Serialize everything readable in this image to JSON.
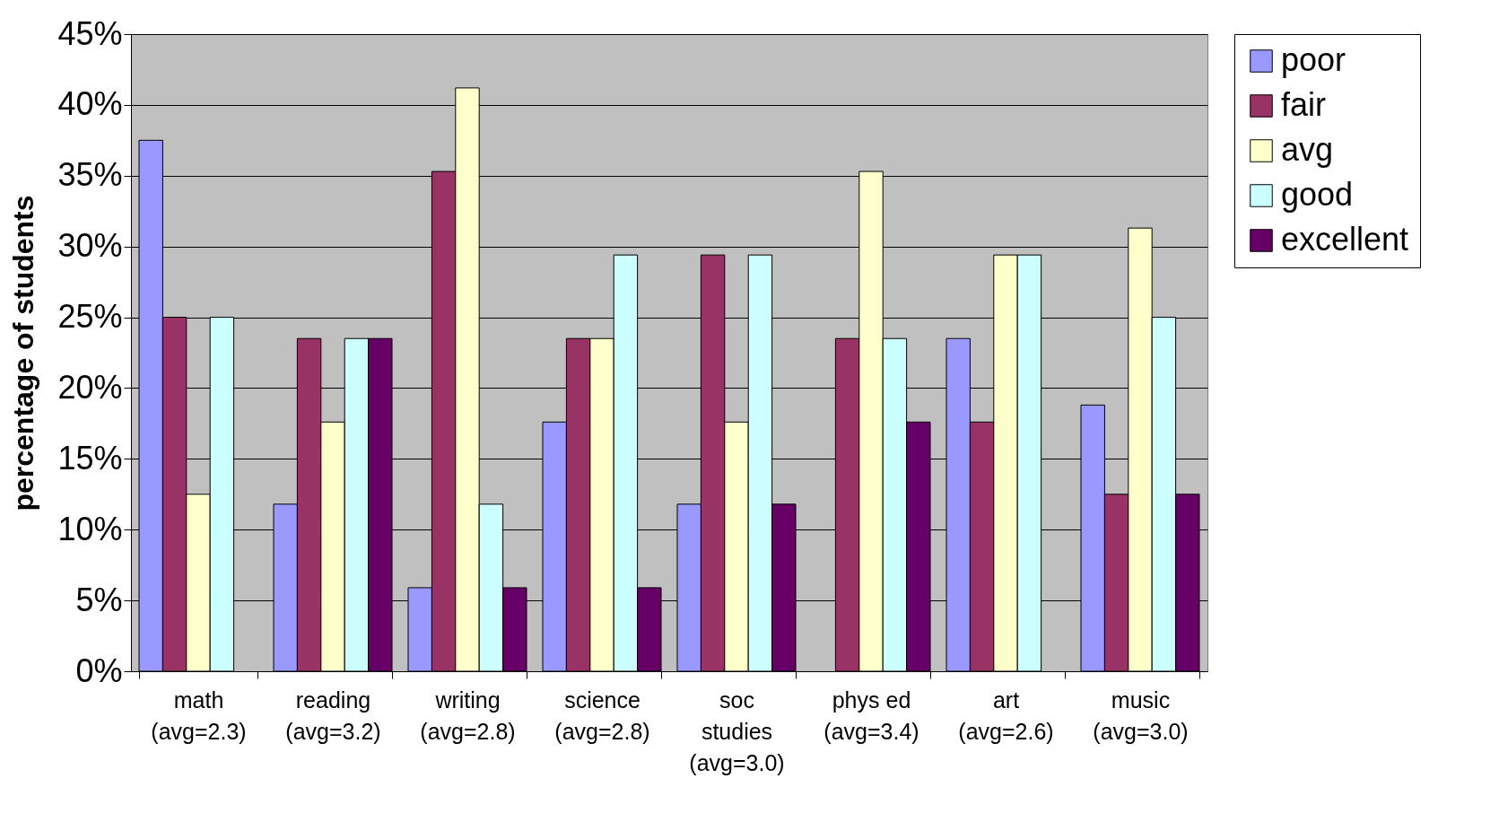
{
  "chart_data": {
    "type": "bar",
    "ylabel": "percentage of students",
    "categories": [
      "math\n(avg=2.3)",
      "reading\n(avg=3.2)",
      "writing\n(avg=2.8)",
      "science\n(avg=2.8)",
      "soc\nstudies\n(avg=3.0)",
      "phys ed\n(avg=3.4)",
      "art\n(avg=2.6)",
      "music\n(avg=3.0)"
    ],
    "series": [
      {
        "name": "poor",
        "color": "#9999ff",
        "values": [
          37.5,
          11.8,
          5.9,
          17.6,
          11.8,
          null,
          23.5,
          18.8
        ]
      },
      {
        "name": "fair",
        "color": "#993366",
        "values": [
          25,
          23.5,
          35.3,
          23.5,
          29.4,
          23.5,
          17.6,
          12.5
        ]
      },
      {
        "name": "avg",
        "color": "#ffffcc",
        "values": [
          12.5,
          17.6,
          41.2,
          23.5,
          17.6,
          35.3,
          29.4,
          31.3
        ]
      },
      {
        "name": "good",
        "color": "#ccffff",
        "values": [
          25,
          23.5,
          11.8,
          29.4,
          29.4,
          23.5,
          29.4,
          25
        ]
      },
      {
        "name": "excellent",
        "color": "#660066",
        "values": [
          null,
          23.5,
          5.9,
          5.9,
          11.8,
          17.6,
          null,
          12.5
        ]
      }
    ],
    "ylim": [
      0,
      45
    ],
    "yticks": [
      {
        "value": 0,
        "label": "0%"
      },
      {
        "value": 5,
        "label": "5%"
      },
      {
        "value": 10,
        "label": "10%"
      },
      {
        "value": 15,
        "label": "15%"
      },
      {
        "value": 20,
        "label": "20%"
      },
      {
        "value": 25,
        "label": "25%"
      },
      {
        "value": 30,
        "label": "30%"
      },
      {
        "value": 35,
        "label": "35%"
      },
      {
        "value": 40,
        "label": "40%"
      },
      {
        "value": 45,
        "label": "45%"
      }
    ],
    "grid": "y",
    "legend": "right"
  }
}
